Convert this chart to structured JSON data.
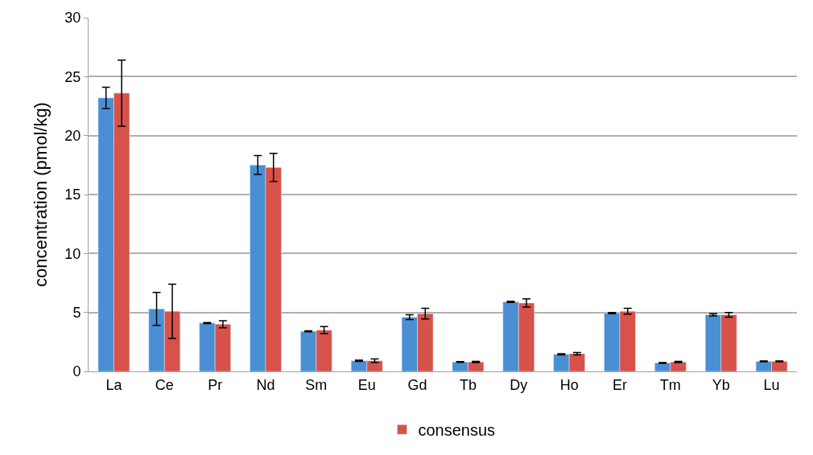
{
  "chart_data": {
    "type": "bar",
    "ylabel": "concentration (pmol/kg)",
    "categories": [
      "La",
      "Ce",
      "Pr",
      "Nd",
      "Sm",
      "Eu",
      "Gd",
      "Tb",
      "Dy",
      "Ho",
      "Er",
      "Tm",
      "Yb",
      "Lu"
    ],
    "series": [
      {
        "color": "#4a8fd4",
        "values": [
          23.2,
          5.3,
          4.1,
          17.5,
          3.4,
          0.9,
          4.6,
          0.8,
          5.9,
          1.45,
          4.95,
          0.72,
          4.8,
          0.85
        ],
        "errors": [
          0.9,
          1.4,
          0.05,
          0.8,
          0.05,
          0.05,
          0.2,
          0.03,
          0.05,
          0.05,
          0.05,
          0.03,
          0.1,
          0.03
        ]
      },
      {
        "name": "consensus",
        "color": "#d6524a",
        "values": [
          23.6,
          5.1,
          4.0,
          17.3,
          3.5,
          0.9,
          4.9,
          0.8,
          5.8,
          1.5,
          5.1,
          0.8,
          4.8,
          0.85
        ],
        "errors": [
          2.8,
          2.3,
          0.3,
          1.2,
          0.3,
          0.15,
          0.45,
          0.05,
          0.35,
          0.1,
          0.25,
          0.05,
          0.2,
          0.03
        ]
      }
    ],
    "ylim": [
      0,
      30
    ],
    "yticks": [
      0,
      5,
      10,
      15,
      20,
      25,
      30
    ],
    "grid": "y",
    "legend": "bottom"
  }
}
